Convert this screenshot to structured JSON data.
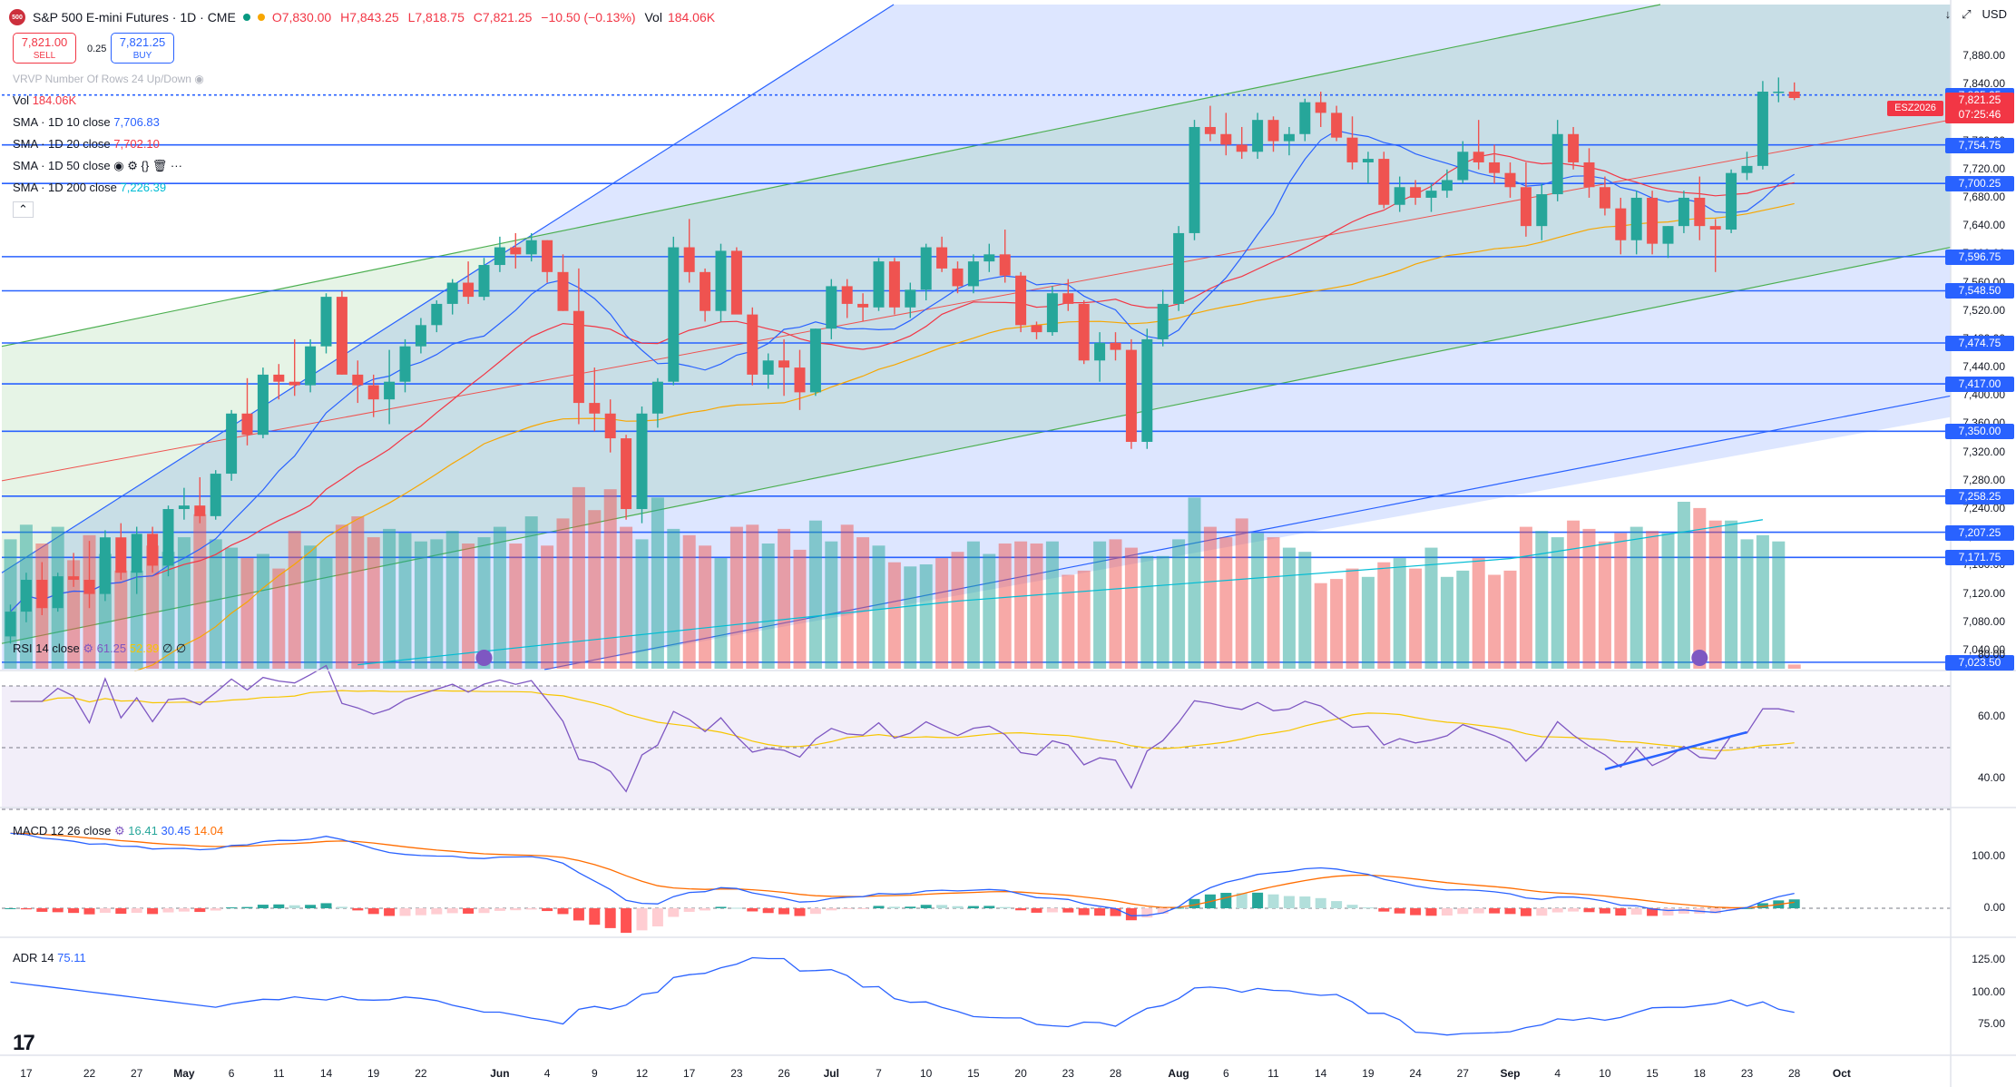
{
  "header": {
    "symbol": "S&P 500 E-mini Futures · 1D · CME",
    "logo": "500",
    "open": "O7,830.00",
    "high": "H7,843.25",
    "low": "L7,818.75",
    "close": "C7,821.25",
    "change": "−10.50 (−0.13%)",
    "vol_label": "Vol",
    "vol_value": "184.06K"
  },
  "trade": {
    "sell_price": "7,821.00",
    "sell_label": "SELL",
    "buy_price": "7,821.25",
    "buy_label": "BUY",
    "spread": "0.25"
  },
  "vrvp_label": "VRVP Number Of Rows 24 Up/Down",
  "indicators": [
    {
      "label": "Vol",
      "value": "184.06K",
      "color": "#f23645"
    },
    {
      "label": "SMA · 1D 10 close",
      "value": "7,706.83",
      "color": "#2962ff"
    },
    {
      "label": "SMA · 1D 20 close",
      "value": "7,702.10",
      "color": "#f23645"
    },
    {
      "label": "SMA · 1D 50 close",
      "value": "",
      "color": "#f7a600"
    },
    {
      "label": "SMA · 1D 200 close",
      "value": "7,226.39",
      "color": "#00bcd4"
    }
  ],
  "rsi_legend": {
    "label": "RSI 14 close",
    "v1": "61.25",
    "v2": "52.39",
    "v3": "∅ ∅"
  },
  "macd_legend": {
    "label": "MACD 12 26 close",
    "v1": "16.41",
    "v2": "30.45",
    "v3": "14.04"
  },
  "adr_legend": {
    "label": "ADR 14",
    "v1": "75.11"
  },
  "currency": "USD",
  "contract_tag": "ESZ2026",
  "countdown": "07:25:46",
  "chart_data": {
    "type": "candlestick",
    "price_axis_ticks": [
      "7,880.00",
      "7,840.00",
      "7,800.00",
      "7,760.00",
      "7,720.00",
      "7,680.00",
      "7,640.00",
      "7,600.00",
      "7,560.00",
      "7,520.00",
      "7,480.00",
      "7,440.00",
      "7,400.00",
      "7,360.00",
      "7,320.00",
      "7,280.00",
      "7,240.00",
      "7,200.00",
      "7,160.00",
      "7,120.00",
      "7,080.00",
      "7,040.00"
    ],
    "price_levels": [
      {
        "value": 7825.25,
        "label": "7,825.25",
        "color": "#2962ff"
      },
      {
        "value": 7754.75,
        "label": "7,754.75",
        "color": "#2962ff"
      },
      {
        "value": 7700.25,
        "label": "7,700.25",
        "color": "#2962ff"
      },
      {
        "value": 7596.75,
        "label": "7,596.75",
        "color": "#2962ff"
      },
      {
        "value": 7548.5,
        "label": "7,548.50",
        "color": "#2962ff"
      },
      {
        "value": 7474.75,
        "label": "7,474.75",
        "color": "#2962ff"
      },
      {
        "value": 7417.0,
        "label": "7,417.00",
        "color": "#2962ff"
      },
      {
        "value": 7350.0,
        "label": "7,350.00",
        "color": "#2962ff"
      },
      {
        "value": 7258.25,
        "label": "7,258.25",
        "color": "#2962ff"
      },
      {
        "value": 7207.25,
        "label": "7,207.25",
        "color": "#2962ff"
      },
      {
        "value": 7171.75,
        "label": "7,171.75",
        "color": "#2962ff"
      },
      {
        "value": 7023.5,
        "label": "7,023.50",
        "color": "#2962ff"
      }
    ],
    "last_price": {
      "value": 7821.25,
      "label": "7,821.25"
    },
    "x_labels": [
      {
        "i": 1,
        "t": "17"
      },
      {
        "i": 5,
        "t": "22"
      },
      {
        "i": 8,
        "t": "27"
      },
      {
        "i": 11,
        "t": "May",
        "bold": true
      },
      {
        "i": 14,
        "t": "6"
      },
      {
        "i": 17,
        "t": "11"
      },
      {
        "i": 20,
        "t": "14"
      },
      {
        "i": 23,
        "t": "19"
      },
      {
        "i": 26,
        "t": "22"
      },
      {
        "i": 31,
        "t": "Jun",
        "bold": true
      },
      {
        "i": 34,
        "t": "4"
      },
      {
        "i": 37,
        "t": "9"
      },
      {
        "i": 40,
        "t": "12"
      },
      {
        "i": 43,
        "t": "17"
      },
      {
        "i": 46,
        "t": "23"
      },
      {
        "i": 49,
        "t": "26"
      },
      {
        "i": 52,
        "t": "Jul",
        "bold": true
      },
      {
        "i": 55,
        "t": "7"
      },
      {
        "i": 58,
        "t": "10"
      },
      {
        "i": 61,
        "t": "15"
      },
      {
        "i": 64,
        "t": "20"
      },
      {
        "i": 67,
        "t": "23"
      },
      {
        "i": 70,
        "t": "28"
      },
      {
        "i": 74,
        "t": "Aug",
        "bold": true
      },
      {
        "i": 77,
        "t": "6"
      },
      {
        "i": 80,
        "t": "11"
      },
      {
        "i": 83,
        "t": "14"
      },
      {
        "i": 86,
        "t": "19"
      },
      {
        "i": 89,
        "t": "24"
      },
      {
        "i": 92,
        "t": "27"
      },
      {
        "i": 95,
        "t": "Sep",
        "bold": true
      },
      {
        "i": 98,
        "t": "4"
      },
      {
        "i": 101,
        "t": "10"
      },
      {
        "i": 104,
        "t": "15"
      },
      {
        "i": 107,
        "t": "18"
      },
      {
        "i": 110,
        "t": "23"
      },
      {
        "i": 113,
        "t": "28"
      },
      {
        "i": 116,
        "t": "Oct",
        "bold": true
      }
    ],
    "candles": [
      [
        7060,
        7105,
        7050,
        7095
      ],
      [
        7095,
        7150,
        7080,
        7140
      ],
      [
        7140,
        7165,
        7090,
        7100
      ],
      [
        7100,
        7150,
        7095,
        7145
      ],
      [
        7145,
        7178,
        7130,
        7140
      ],
      [
        7140,
        7195,
        7100,
        7120
      ],
      [
        7120,
        7210,
        7110,
        7200
      ],
      [
        7200,
        7220,
        7140,
        7150
      ],
      [
        7150,
        7215,
        7120,
        7205
      ],
      [
        7205,
        7215,
        7150,
        7160
      ],
      [
        7160,
        7245,
        7145,
        7240
      ],
      [
        7240,
        7270,
        7225,
        7245
      ],
      [
        7245,
        7285,
        7220,
        7230
      ],
      [
        7230,
        7295,
        7225,
        7290
      ],
      [
        7290,
        7380,
        7280,
        7375
      ],
      [
        7375,
        7425,
        7330,
        7345
      ],
      [
        7345,
        7440,
        7340,
        7430
      ],
      [
        7430,
        7445,
        7395,
        7420
      ],
      [
        7420,
        7480,
        7400,
        7415
      ],
      [
        7415,
        7480,
        7405,
        7470
      ],
      [
        7470,
        7545,
        7460,
        7540
      ],
      [
        7540,
        7548,
        7430,
        7430
      ],
      [
        7430,
        7450,
        7390,
        7415
      ],
      [
        7415,
        7430,
        7370,
        7395
      ],
      [
        7395,
        7465,
        7360,
        7420
      ],
      [
        7420,
        7480,
        7405,
        7470
      ],
      [
        7470,
        7510,
        7460,
        7500
      ],
      [
        7500,
        7535,
        7490,
        7530
      ],
      [
        7530,
        7565,
        7515,
        7560
      ],
      [
        7560,
        7590,
        7530,
        7540
      ],
      [
        7540,
        7595,
        7535,
        7585
      ],
      [
        7585,
        7625,
        7575,
        7610
      ],
      [
        7610,
        7630,
        7580,
        7600
      ],
      [
        7600,
        7630,
        7590,
        7620
      ],
      [
        7620,
        7620,
        7560,
        7575
      ],
      [
        7575,
        7600,
        7520,
        7520
      ],
      [
        7520,
        7580,
        7360,
        7390
      ],
      [
        7390,
        7440,
        7350,
        7375
      ],
      [
        7375,
        7395,
        7320,
        7340
      ],
      [
        7340,
        7345,
        7225,
        7240
      ],
      [
        7240,
        7385,
        7220,
        7375
      ],
      [
        7375,
        7425,
        7355,
        7420
      ],
      [
        7420,
        7625,
        7415,
        7610
      ],
      [
        7610,
        7650,
        7560,
        7575
      ],
      [
        7575,
        7580,
        7505,
        7520
      ],
      [
        7520,
        7615,
        7505,
        7605
      ],
      [
        7605,
        7610,
        7520,
        7515
      ],
      [
        7515,
        7525,
        7415,
        7430
      ],
      [
        7430,
        7460,
        7410,
        7450
      ],
      [
        7450,
        7480,
        7400,
        7440
      ],
      [
        7440,
        7465,
        7380,
        7405
      ],
      [
        7405,
        7495,
        7400,
        7495
      ],
      [
        7495,
        7565,
        7480,
        7555
      ],
      [
        7555,
        7565,
        7510,
        7530
      ],
      [
        7530,
        7545,
        7505,
        7525
      ],
      [
        7525,
        7595,
        7520,
        7590
      ],
      [
        7590,
        7595,
        7515,
        7525
      ],
      [
        7525,
        7560,
        7510,
        7550
      ],
      [
        7550,
        7615,
        7535,
        7610
      ],
      [
        7610,
        7625,
        7575,
        7580
      ],
      [
        7580,
        7590,
        7545,
        7555
      ],
      [
        7555,
        7600,
        7545,
        7590
      ],
      [
        7590,
        7615,
        7575,
        7600
      ],
      [
        7600,
        7635,
        7560,
        7570
      ],
      [
        7570,
        7575,
        7490,
        7500
      ],
      [
        7500,
        7505,
        7480,
        7490
      ],
      [
        7490,
        7555,
        7485,
        7545
      ],
      [
        7545,
        7565,
        7520,
        7530
      ],
      [
        7530,
        7535,
        7445,
        7450
      ],
      [
        7450,
        7490,
        7420,
        7475
      ],
      [
        7475,
        7490,
        7450,
        7465
      ],
      [
        7465,
        7480,
        7325,
        7335
      ],
      [
        7335,
        7495,
        7325,
        7480
      ],
      [
        7480,
        7550,
        7470,
        7530
      ],
      [
        7530,
        7640,
        7520,
        7630
      ],
      [
        7630,
        7790,
        7620,
        7780
      ],
      [
        7780,
        7810,
        7760,
        7770
      ],
      [
        7770,
        7800,
        7740,
        7755
      ],
      [
        7755,
        7780,
        7735,
        7745
      ],
      [
        7745,
        7800,
        7735,
        7790
      ],
      [
        7790,
        7795,
        7745,
        7760
      ],
      [
        7760,
        7780,
        7740,
        7770
      ],
      [
        7770,
        7820,
        7760,
        7815
      ],
      [
        7815,
        7830,
        7780,
        7800
      ],
      [
        7800,
        7810,
        7760,
        7765
      ],
      [
        7765,
        7795,
        7720,
        7730
      ],
      [
        7730,
        7745,
        7700,
        7735
      ],
      [
        7735,
        7745,
        7665,
        7670
      ],
      [
        7670,
        7710,
        7660,
        7695
      ],
      [
        7695,
        7705,
        7670,
        7680
      ],
      [
        7680,
        7700,
        7660,
        7690
      ],
      [
        7690,
        7720,
        7680,
        7705
      ],
      [
        7705,
        7760,
        7700,
        7745
      ],
      [
        7745,
        7790,
        7720,
        7730
      ],
      [
        7730,
        7755,
        7700,
        7715
      ],
      [
        7715,
        7730,
        7680,
        7695
      ],
      [
        7695,
        7730,
        7625,
        7640
      ],
      [
        7640,
        7700,
        7620,
        7685
      ],
      [
        7685,
        7790,
        7675,
        7770
      ],
      [
        7770,
        7780,
        7720,
        7730
      ],
      [
        7730,
        7750,
        7680,
        7695
      ],
      [
        7695,
        7710,
        7655,
        7665
      ],
      [
        7665,
        7680,
        7600,
        7620
      ],
      [
        7620,
        7690,
        7600,
        7680
      ],
      [
        7680,
        7690,
        7600,
        7615
      ],
      [
        7615,
        7640,
        7595,
        7640
      ],
      [
        7640,
        7690,
        7630,
        7680
      ],
      [
        7680,
        7710,
        7620,
        7640
      ],
      [
        7640,
        7650,
        7575,
        7635
      ],
      [
        7635,
        7720,
        7630,
        7715
      ],
      [
        7715,
        7745,
        7705,
        7725
      ],
      [
        7725,
        7845,
        7720,
        7830
      ],
      [
        7830,
        7850,
        7815,
        7830
      ],
      [
        7830,
        7843,
        7818,
        7821
      ]
    ],
    "volume": [
      0.62,
      0.69,
      0.6,
      0.68,
      0.52,
      0.64,
      0.55,
      0.47,
      0.47,
      0.59,
      0.56,
      0.63,
      0.74,
      0.62,
      0.58,
      0.53,
      0.55,
      0.48,
      0.66,
      0.59,
      0.53,
      0.69,
      0.73,
      0.63,
      0.67,
      0.65,
      0.61,
      0.62,
      0.66,
      0.6,
      0.63,
      0.68,
      0.6,
      0.73,
      0.59,
      0.72,
      0.87,
      0.76,
      0.86,
      0.68,
      0.62,
      0.82,
      0.67,
      0.64,
      0.59,
      0.53,
      0.68,
      0.69,
      0.6,
      0.67,
      0.57,
      0.71,
      0.61,
      0.69,
      0.63,
      0.59,
      0.51,
      0.49,
      0.5,
      0.53,
      0.56,
      0.61,
      0.55,
      0.6,
      0.61,
      0.6,
      0.61,
      0.45,
      0.47,
      0.61,
      0.62,
      0.58,
      0.54,
      0.54,
      0.62,
      0.82,
      0.68,
      0.63,
      0.72,
      0.65,
      0.63,
      0.58,
      0.56,
      0.41,
      0.43,
      0.48,
      0.44,
      0.51,
      0.53,
      0.48,
      0.58,
      0.44,
      0.47,
      0.53,
      0.45,
      0.47,
      0.68,
      0.66,
      0.63,
      0.71,
      0.67,
      0.61,
      0.65,
      0.68,
      0.66,
      0.65,
      0.8,
      0.77,
      0.71,
      0.71,
      0.62,
      0.64,
      0.61,
      0.02
    ],
    "rsi": {
      "axis": [
        "80.00",
        "60.00",
        "40.00"
      ],
      "overbought": 70,
      "oversold": 30,
      "last": 61.25,
      "ma_last": 52.39
    },
    "macd": {
      "axis": [
        "100.00",
        "0.00"
      ],
      "macd_last": 16.41,
      "signal_last": 30.45,
      "hist_last": 14.04
    },
    "adr": {
      "axis": [
        "125.00",
        "100.00",
        "75.00"
      ],
      "last": 75.11
    },
    "colors": {
      "up": "#26a69a",
      "down": "#ef5350",
      "sma10": "#2962ff",
      "sma20": "#f23645",
      "sma50": "#f7a600",
      "sma200": "#00bcd4",
      "level": "#2962ff"
    }
  }
}
